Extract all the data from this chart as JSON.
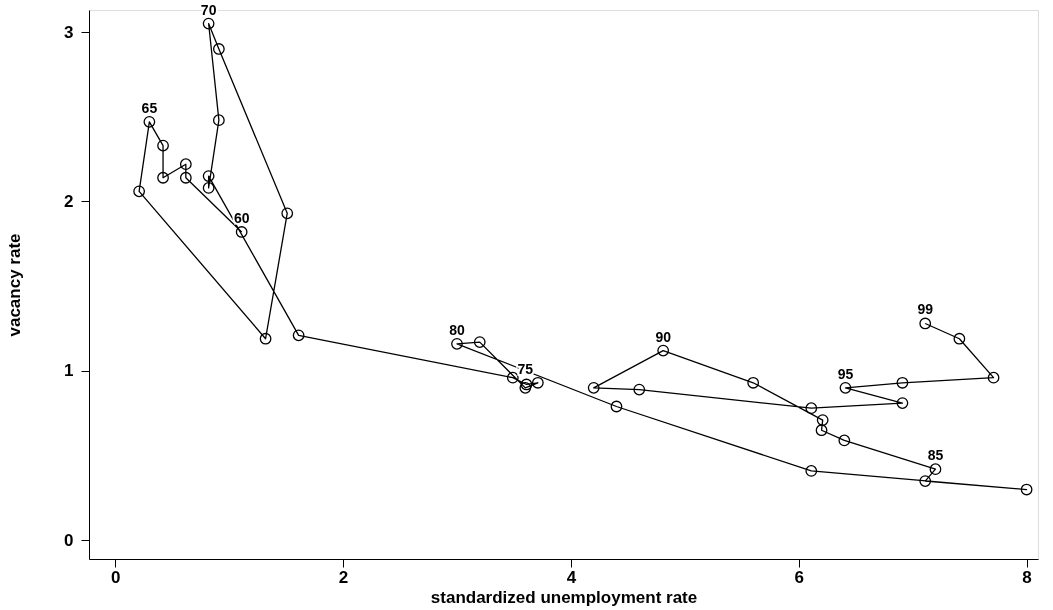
{
  "chart_data": {
    "type": "line",
    "xlabel": "standardized unemployment rate",
    "ylabel": "vacancy rate",
    "x": [
      1.11,
      0.62,
      0.62,
      0.42,
      0.42,
      0.3,
      0.21,
      1.32,
      1.51,
      0.91,
      0.82,
      0.91,
      0.82,
      0.82,
      1.61,
      3.49,
      3.61,
      3.71,
      3.6,
      3.2,
      3.0,
      4.4,
      6.11,
      8.0,
      7.11,
      7.2,
      6.4,
      6.2,
      6.21,
      5.6,
      4.81,
      4.2,
      4.6,
      6.11,
      6.91,
      6.41,
      6.91,
      7.71,
      7.41,
      7.11
    ],
    "series": [
      {
        "color": "#000000",
        "values": [
          1.82,
          2.14,
          2.22,
          2.14,
          2.33,
          2.47,
          2.06,
          1.19,
          1.93,
          2.9,
          3.05,
          2.48,
          2.08,
          2.15,
          1.21,
          0.96,
          0.92,
          0.93,
          0.9,
          1.17,
          1.16,
          0.79,
          0.41,
          0.3,
          0.35,
          0.42,
          0.59,
          0.65,
          0.71,
          0.93,
          1.12,
          0.9,
          0.89,
          0.78,
          0.81,
          0.9,
          0.93,
          0.96,
          1.19,
          1.28
        ]
      }
    ],
    "marker": "circle",
    "line_style": "solid",
    "grid": false,
    "xlim": [
      -0.23,
      8.1
    ],
    "ylim": [
      -0.11,
      3.13
    ],
    "xticks": [
      0,
      2,
      4,
      6,
      8
    ],
    "yticks": [
      0,
      1,
      2,
      3
    ],
    "annotations": [
      {
        "text": "60",
        "x": 1.11,
        "y": 1.82
      },
      {
        "text": "65",
        "x": 0.3,
        "y": 2.47
      },
      {
        "text": "70",
        "x": 0.82,
        "y": 3.05
      },
      {
        "text": "75",
        "x": 3.6,
        "y": 0.93
      },
      {
        "text": "80",
        "x": 3.0,
        "y": 1.16
      },
      {
        "text": "85",
        "x": 7.2,
        "y": 0.42
      },
      {
        "text": "90",
        "x": 4.81,
        "y": 1.12
      },
      {
        "text": "95",
        "x": 6.41,
        "y": 0.9
      },
      {
        "text": "99",
        "x": 7.11,
        "y": 1.28
      }
    ]
  }
}
